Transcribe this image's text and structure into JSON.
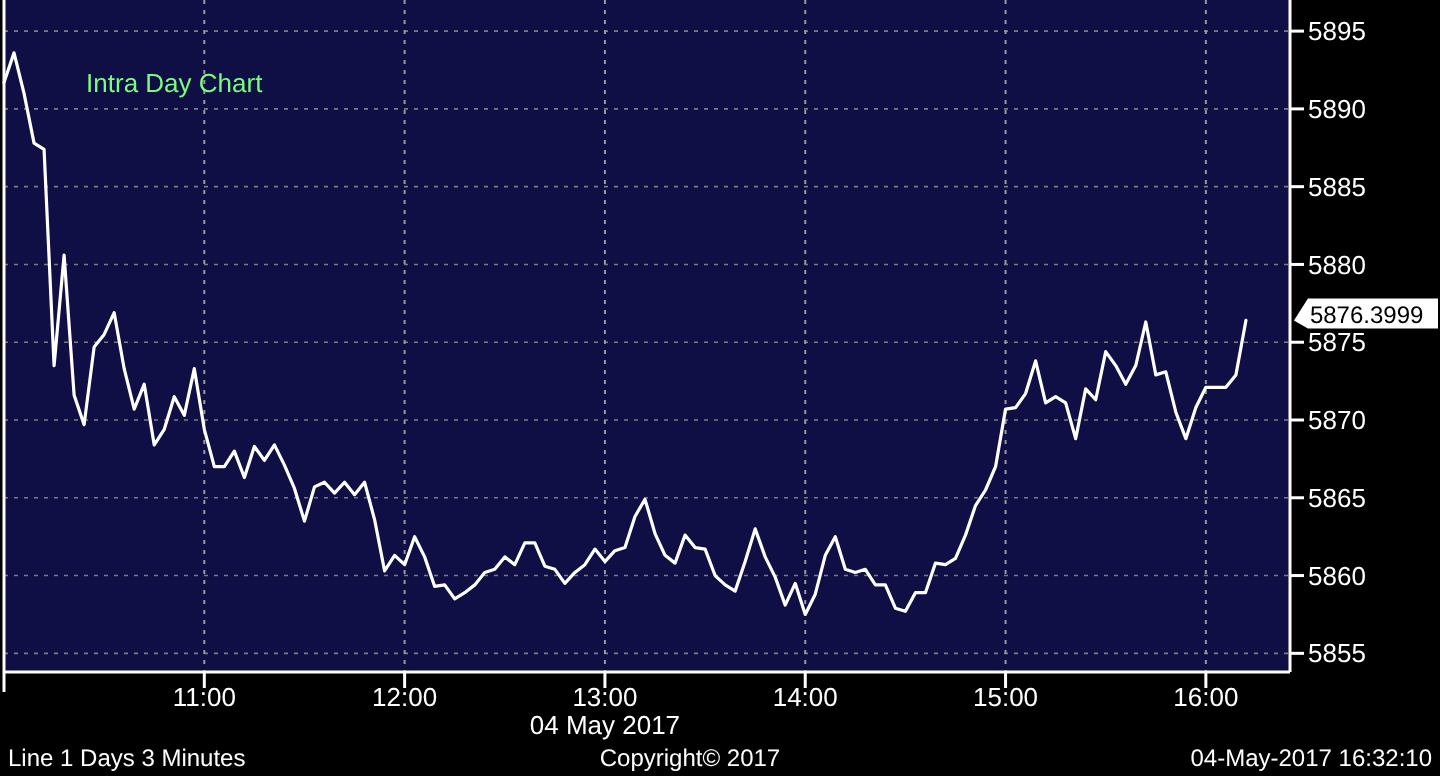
{
  "chart_data": {
    "type": "line",
    "title": "Intra Day Chart",
    "xlabel": "04 May 2017",
    "x": [
      10,
      10.05,
      10.1,
      10.15,
      10.2,
      10.25,
      10.3,
      10.35,
      10.4,
      10.45,
      10.5,
      10.55,
      10.6,
      10.65,
      10.7,
      10.75,
      10.8,
      10.85,
      10.9,
      10.95,
      11,
      11.05,
      11.1,
      11.15,
      11.2,
      11.25,
      11.3,
      11.35,
      11.4,
      11.45,
      11.5,
      11.55,
      11.6,
      11.65,
      11.7,
      11.75,
      11.8,
      11.85,
      11.9,
      11.95,
      12,
      12.05,
      12.1,
      12.15,
      12.2,
      12.25,
      12.3,
      12.35,
      12.4,
      12.45,
      12.5,
      12.55,
      12.6,
      12.65,
      12.7,
      12.75,
      12.8,
      12.85,
      12.9,
      12.95,
      13,
      13.05,
      13.1,
      13.15,
      13.2,
      13.25,
      13.3,
      13.35,
      13.4,
      13.45,
      13.5,
      13.55,
      13.6,
      13.65,
      13.7,
      13.75,
      13.8,
      13.85,
      13.9,
      13.95,
      14,
      14.05,
      14.1,
      14.15,
      14.2,
      14.25,
      14.3,
      14.35,
      14.4,
      14.45,
      14.5,
      14.55,
      14.6,
      14.65,
      14.7,
      14.75,
      14.8,
      14.85,
      14.9,
      14.95,
      15,
      15.05,
      15.1,
      15.15,
      15.2,
      15.25,
      15.3,
      15.35,
      15.4,
      15.45,
      15.5,
      15.55,
      15.6,
      15.65,
      15.7,
      15.75,
      15.8,
      15.85,
      15.9,
      15.95,
      16,
      16.05,
      16.1,
      16.15,
      16.2
    ],
    "values": [
      5891.7,
      5893.6,
      5891,
      5887.8,
      5887.4,
      5873.5,
      5880.6,
      5871.6,
      5869.7,
      5874.7,
      5875.5,
      5876.9,
      5873.3,
      5870.7,
      5872.3,
      5868.4,
      5869.4,
      5871.5,
      5870.3,
      5873.3,
      5869.4,
      5867,
      5867,
      5868,
      5866.3,
      5868.3,
      5867.4,
      5868.4,
      5867.1,
      5865.6,
      5863.5,
      5865.7,
      5866,
      5865.3,
      5866,
      5865.2,
      5866,
      5863.6,
      5860.3,
      5861.3,
      5860.7,
      5862.5,
      5861.2,
      5859.3,
      5859.4,
      5858.5,
      5858.9,
      5859.4,
      5860.2,
      5860.4,
      5861.2,
      5860.7,
      5862.1,
      5862.1,
      5860.6,
      5860.4,
      5859.5,
      5860.2,
      5860.7,
      5861.7,
      5860.9,
      5861.6,
      5861.8,
      5863.8,
      5864.9,
      5862.7,
      5861.3,
      5860.8,
      5862.6,
      5861.8,
      5861.7,
      5860,
      5859.4,
      5859,
      5860.9,
      5863,
      5861.2,
      5859.9,
      5858.1,
      5859.5,
      5857.5,
      5858.8,
      5861.3,
      5862.5,
      5860.4,
      5860.2,
      5860.4,
      5859.4,
      5859.4,
      5857.9,
      5857.7,
      5858.9,
      5858.9,
      5860.8,
      5860.7,
      5861.1,
      5862.6,
      5864.5,
      5865.5,
      5867,
      5870.7,
      5870.8,
      5871.7,
      5873.8,
      5871.1,
      5871.5,
      5871.1,
      5868.8,
      5872,
      5871.3,
      5874.4,
      5873.5,
      5872.3,
      5873.5,
      5876.3,
      5872.9,
      5873.1,
      5870.5,
      5868.8,
      5870.8,
      5872.1,
      5872.1,
      5872.1,
      5872.9,
      5876.3999
    ],
    "color": "#ffffff",
    "xlim": [
      10,
      16.42
    ],
    "xticks": [
      {
        "value": 11,
        "label": "11:00"
      },
      {
        "value": 12,
        "label": "12:00"
      },
      {
        "value": 13,
        "label": "13:00"
      },
      {
        "value": 14,
        "label": "14:00"
      },
      {
        "value": 15,
        "label": "15:00"
      },
      {
        "value": 16,
        "label": "16:00"
      }
    ],
    "ylim": [
      5853.8,
      5897
    ],
    "yticks": [
      5855,
      5860,
      5865,
      5870,
      5875,
      5880,
      5885,
      5890,
      5895
    ],
    "grid": true,
    "line_style": "solid",
    "annotations": [
      {
        "text": "5876.3999",
        "x": 16.2,
        "y": 5876.3999
      },
      "Line 1 Days 3 Minutes",
      "Copyright© 2017",
      "04-May-2017 16:32:10"
    ]
  }
}
